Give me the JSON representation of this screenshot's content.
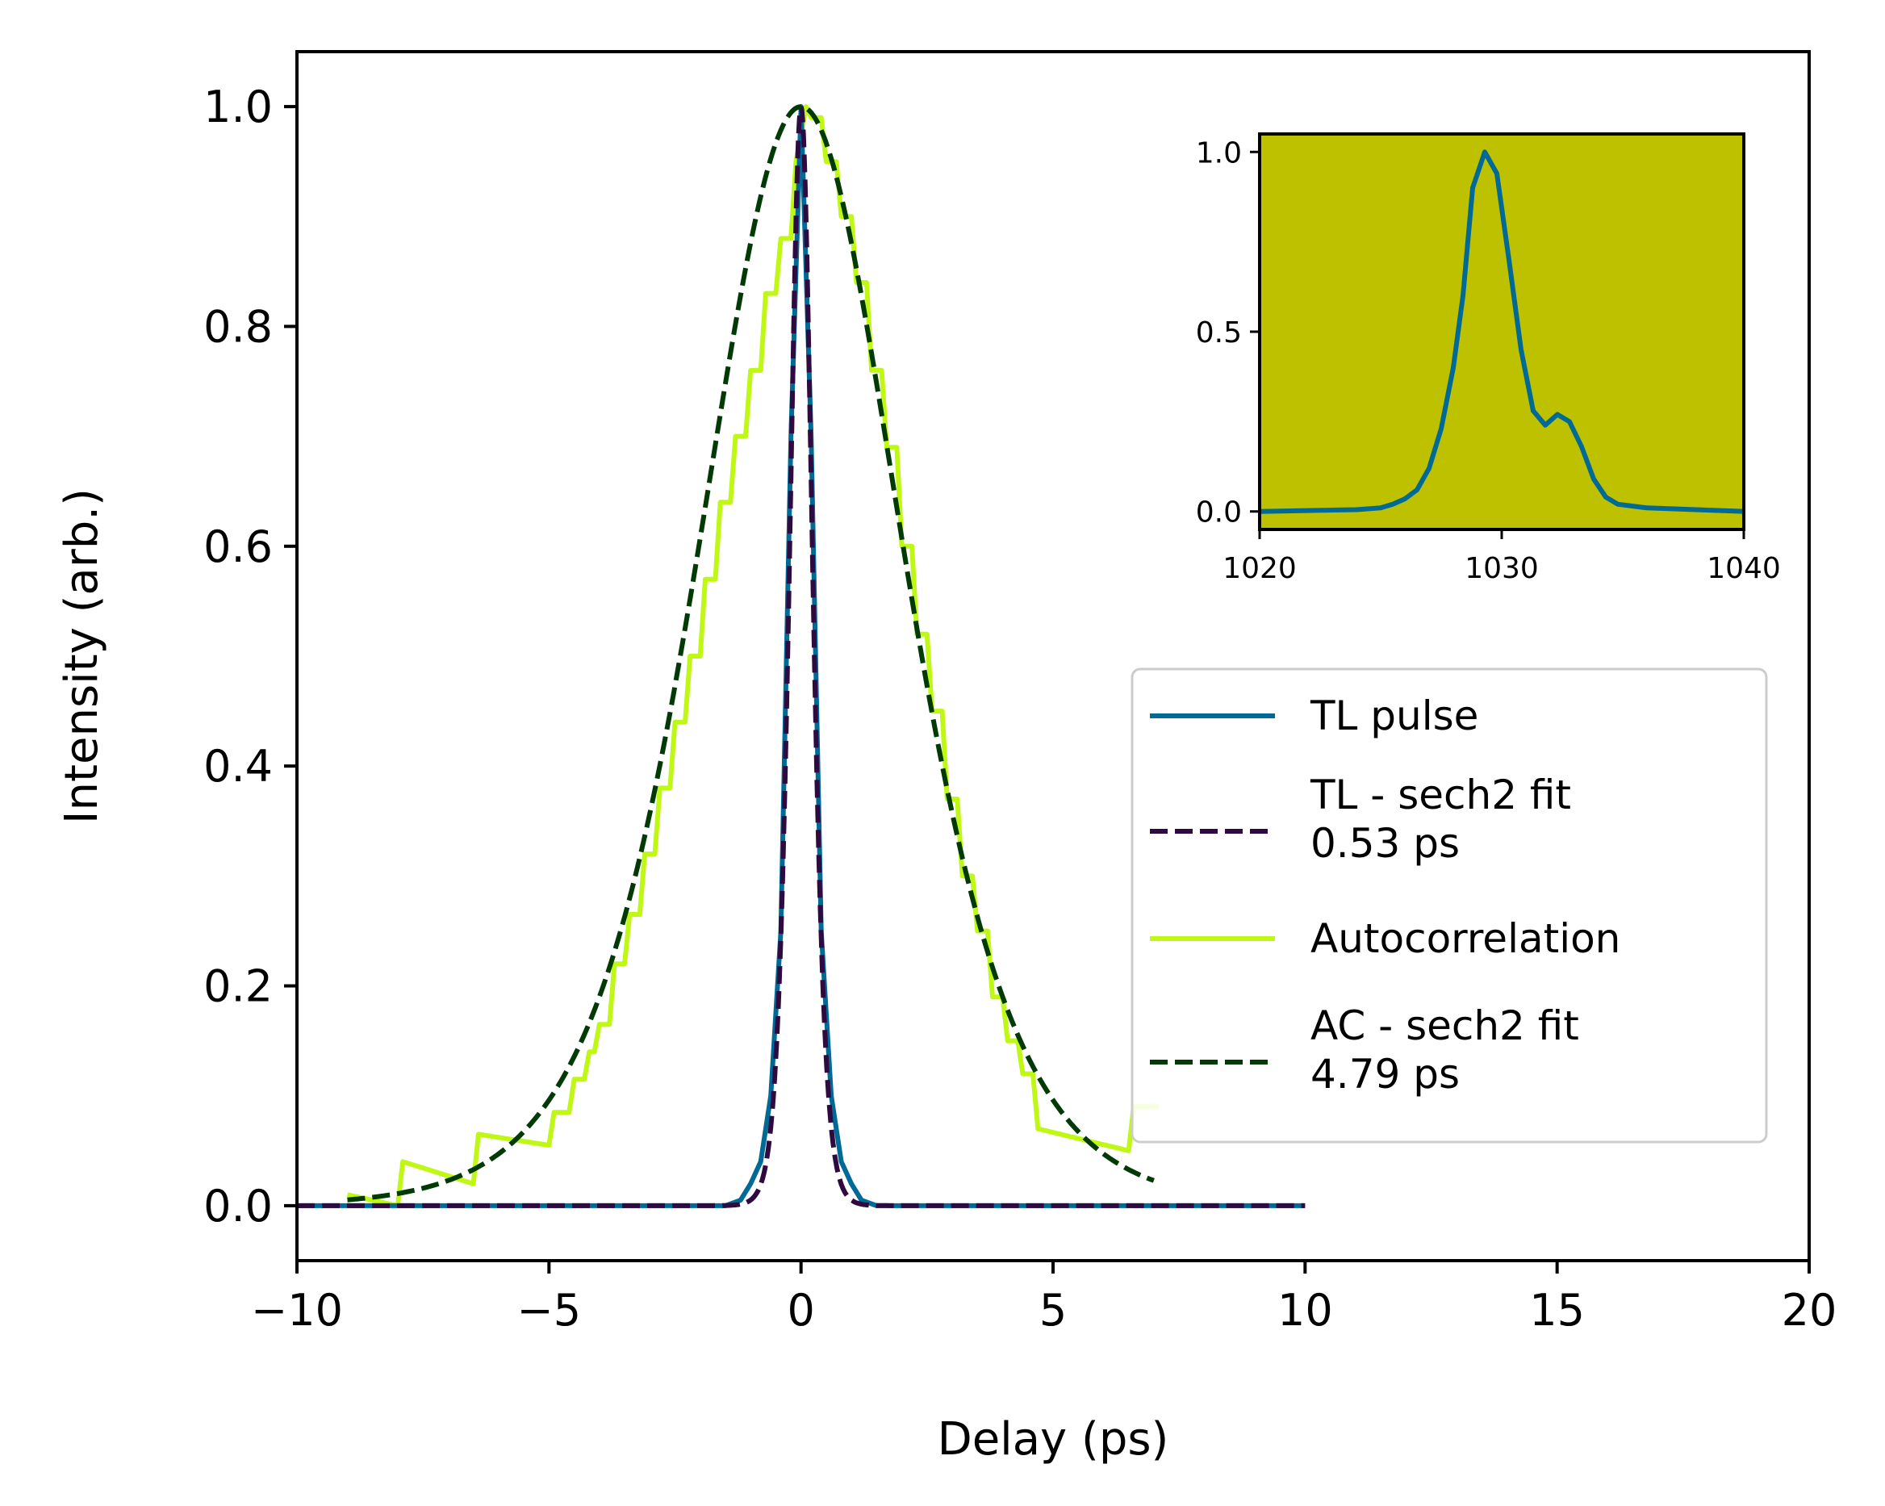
{
  "colors": {
    "tl_pulse": "#006a96",
    "tl_fit": "#2e0a40",
    "autocorr": "#c0f815",
    "ac_fit": "#013a05",
    "inset_bg": "#bdc100"
  },
  "chart_data": [
    {
      "id": "main",
      "type": "line",
      "title": "",
      "xlabel": "Delay (ps)",
      "ylabel": "Intensity (arb.)",
      "xlim": [
        -10,
        20
      ],
      "ylim": [
        -0.05,
        1.05
      ],
      "xticks": [
        -10,
        -5,
        0,
        5,
        10,
        15,
        20
      ],
      "xtick_labels": [
        "−10",
        "−5",
        "0",
        "5",
        "10",
        "15",
        "20"
      ],
      "yticks": [
        0.0,
        0.2,
        0.4,
        0.6,
        0.8,
        1.0
      ],
      "ytick_labels": [
        "0.0",
        "0.2",
        "0.4",
        "0.6",
        "0.8",
        "1.0"
      ],
      "grid": false,
      "legend_position": "right",
      "series": [
        {
          "name": "TL pulse",
          "style": "solid",
          "x": [
            -10,
            -1.5,
            -1.2,
            -1.0,
            -0.8,
            -0.6,
            -0.4,
            -0.2,
            0,
            0.2,
            0.4,
            0.6,
            0.8,
            1.0,
            1.2,
            1.5,
            10
          ],
          "y": [
            0,
            0,
            0.005,
            0.02,
            0.04,
            0.1,
            0.25,
            0.7,
            1.0,
            0.7,
            0.25,
            0.1,
            0.04,
            0.02,
            0.005,
            0,
            0
          ]
        },
        {
          "name": "TL - sech2 fit\n0.53 ps",
          "style": "dashed",
          "fit_fwhm": 0.53,
          "x_range": [
            -10,
            10
          ]
        },
        {
          "name": "Autocorrelation",
          "style": "solid",
          "x": [
            -9,
            -8,
            -7.9,
            -6.5,
            -6.4,
            -5.0,
            -4.9,
            -4.6,
            -4.5,
            -4.3,
            -4.2,
            -4.1,
            -4.0,
            -3.8,
            -3.7,
            -3.5,
            -3.4,
            -3.2,
            -3.1,
            -2.9,
            -2.8,
            -2.6,
            -2.5,
            -2.3,
            -2.2,
            -2.0,
            -1.9,
            -1.7,
            -1.6,
            -1.4,
            -1.3,
            -1.1,
            -1.0,
            -0.8,
            -0.7,
            -0.5,
            -0.4,
            -0.2,
            -0.1,
            0.1,
            0.2,
            0.4,
            0.5,
            0.7,
            0.8,
            1.0,
            1.1,
            1.3,
            1.4,
            1.6,
            1.7,
            1.9,
            2.0,
            2.2,
            2.3,
            2.5,
            2.6,
            2.8,
            2.9,
            3.1,
            3.2,
            3.4,
            3.5,
            3.7,
            3.8,
            4.0,
            4.1,
            4.3,
            4.4,
            4.6,
            4.7,
            6.5,
            6.6,
            7.0,
            7.1
          ],
          "y": [
            0.01,
            0.0,
            0.04,
            0.02,
            0.065,
            0.055,
            0.085,
            0.085,
            0.115,
            0.115,
            0.14,
            0.14,
            0.165,
            0.165,
            0.22,
            0.22,
            0.265,
            0.265,
            0.32,
            0.32,
            0.38,
            0.38,
            0.44,
            0.44,
            0.5,
            0.5,
            0.57,
            0.57,
            0.64,
            0.64,
            0.7,
            0.7,
            0.76,
            0.76,
            0.83,
            0.83,
            0.88,
            0.88,
            0.95,
            1.0,
            0.99,
            0.99,
            0.95,
            0.95,
            0.9,
            0.9,
            0.84,
            0.84,
            0.76,
            0.76,
            0.69,
            0.69,
            0.6,
            0.6,
            0.52,
            0.52,
            0.45,
            0.45,
            0.37,
            0.37,
            0.3,
            0.3,
            0.25,
            0.25,
            0.19,
            0.19,
            0.15,
            0.15,
            0.12,
            0.12,
            0.07,
            0.05,
            0.09,
            0.09,
            0.09
          ]
        },
        {
          "name": "AC - sech2 fit\n4.79 ps",
          "style": "dashed",
          "fit_fwhm": 4.79,
          "x_range": [
            -9,
            7
          ]
        }
      ]
    },
    {
      "id": "inset",
      "type": "line",
      "title": "",
      "xlabel": "",
      "ylabel": "",
      "xlim": [
        1020,
        1040
      ],
      "ylim": [
        -0.05,
        1.05
      ],
      "xticks": [
        1020,
        1030,
        1040
      ],
      "xtick_labels": [
        "1020",
        "1030",
        "1040"
      ],
      "yticks": [
        0.0,
        0.5,
        1.0
      ],
      "ytick_labels": [
        "0.0",
        "0.5",
        "1.0"
      ],
      "grid": false,
      "series": [
        {
          "name": "",
          "x": [
            1020,
            1024,
            1025,
            1025.5,
            1026,
            1026.5,
            1027,
            1027.5,
            1028,
            1028.4,
            1028.8,
            1029.3,
            1029.8,
            1030.3,
            1030.8,
            1031.3,
            1031.8,
            1032.3,
            1032.8,
            1033.3,
            1033.8,
            1034.3,
            1034.8,
            1036,
            1040
          ],
          "y": [
            0.0,
            0.005,
            0.01,
            0.02,
            0.035,
            0.06,
            0.12,
            0.23,
            0.4,
            0.6,
            0.9,
            1.0,
            0.94,
            0.7,
            0.45,
            0.28,
            0.24,
            0.27,
            0.25,
            0.18,
            0.09,
            0.04,
            0.02,
            0.01,
            0.0
          ]
        }
      ]
    }
  ]
}
